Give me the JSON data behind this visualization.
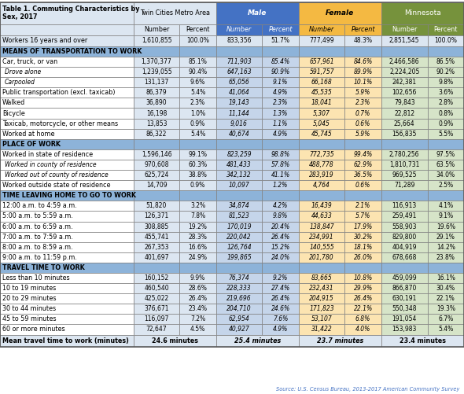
{
  "title": "Table 1. Commuting Characteristics by\nSex, 2017",
  "col_group_headers": [
    "Twin Cities Metro Area",
    "Male",
    "Female",
    "Minnesota"
  ],
  "col_sub_headers": [
    "Number",
    "Percent",
    "Number",
    "Percent",
    "Number",
    "Percent",
    "Number",
    "Percent"
  ],
  "tc_bg": "#dce6f1",
  "male_bg": "#4472c4",
  "female_bg": "#f4b942",
  "mn_bg": "#76923c",
  "section_bg": "#8db3d9",
  "worker_bg": "#dce6f1",
  "normal_bg": "#ffffff",
  "mean_bg": "#dce6f1",
  "male_data_bg": "#c5d5ea",
  "female_data_bg": "#fce4b1",
  "mn_data_bg": "#d6e4c8",
  "border_color": "#7f7f7f",
  "source_text": "Source: U.S. Census Bureau, 2013-2017 American Community Survey",
  "source_color": "#4472c4",
  "rows": [
    {
      "label": "Workers 16 years and over",
      "type": "workers",
      "v": [
        "1,610,855",
        "100.0%",
        "833,356",
        "51.7%",
        "777,499",
        "48.3%",
        "2,851,545",
        "100.0%"
      ]
    },
    {
      "label": "MEANS OF TRANSPORTATION TO WORK",
      "type": "section",
      "v": []
    },
    {
      "label": "Car, truck, or van",
      "type": "normal",
      "v": [
        "1,370,377",
        "85.1%",
        "711,903",
        "85.4%",
        "657,961",
        "84.6%",
        "2,466,586",
        "86.5%"
      ]
    },
    {
      "label": "Drove alone",
      "type": "subrow",
      "v": [
        "1,239,055",
        "90.4%",
        "647,163",
        "90.9%",
        "591,757",
        "89.9%",
        "2,224,205",
        "90.2%"
      ]
    },
    {
      "label": "Carpooled",
      "type": "subrow",
      "v": [
        "131,137",
        "9.6%",
        "65,056",
        "9.1%",
        "66,168",
        "10.1%",
        "242,381",
        "9.8%"
      ]
    },
    {
      "label": "Public transportation (excl. taxicab)",
      "type": "normal",
      "v": [
        "86,379",
        "5.4%",
        "41,064",
        "4.9%",
        "45,535",
        "5.9%",
        "102,656",
        "3.6%"
      ]
    },
    {
      "label": "Walked",
      "type": "normal",
      "v": [
        "36,890",
        "2.3%",
        "19,143",
        "2.3%",
        "18,041",
        "2.3%",
        "79,843",
        "2.8%"
      ]
    },
    {
      "label": "Bicycle",
      "type": "normal",
      "v": [
        "16,198",
        "1.0%",
        "11,144",
        "1.3%",
        "5,307",
        "0.7%",
        "22,812",
        "0.8%"
      ]
    },
    {
      "label": "Taxicab, motorcycle, or other means",
      "type": "normal",
      "v": [
        "13,853",
        "0.9%",
        "9,016",
        "1.1%",
        "5,045",
        "0.6%",
        "25,664",
        "0.9%"
      ]
    },
    {
      "label": "Worked at home",
      "type": "normal",
      "v": [
        "86,322",
        "5.4%",
        "40,674",
        "4.9%",
        "45,745",
        "5.9%",
        "156,835",
        "5.5%"
      ]
    },
    {
      "label": "PLACE OF WORK",
      "type": "section",
      "v": []
    },
    {
      "label": "Worked in state of residence",
      "type": "normal",
      "v": [
        "1,596,146",
        "99.1%",
        "823,259",
        "98.8%",
        "772,735",
        "99.4%",
        "2,780,256",
        "97.5%"
      ]
    },
    {
      "label": "Worked in county of residence",
      "type": "subrow",
      "v": [
        "970,608",
        "60.3%",
        "481,433",
        "57.8%",
        "488,778",
        "62.9%",
        "1,810,731",
        "63.5%"
      ]
    },
    {
      "label": "Worked out of county of residence",
      "type": "subrow",
      "v": [
        "625,724",
        "38.8%",
        "342,132",
        "41.1%",
        "283,919",
        "36.5%",
        "969,525",
        "34.0%"
      ]
    },
    {
      "label": "Worked outside state of residence",
      "type": "normal",
      "v": [
        "14,709",
        "0.9%",
        "10,097",
        "1.2%",
        "4,764",
        "0.6%",
        "71,289",
        "2.5%"
      ]
    },
    {
      "label": "TIME LEAVING HOME TO GO TO WORK",
      "type": "section",
      "v": []
    },
    {
      "label": "12:00 a.m. to 4:59 a.m.",
      "type": "normal",
      "v": [
        "51,820",
        "3.2%",
        "34,874",
        "4.2%",
        "16,439",
        "2.1%",
        "116,913",
        "4.1%"
      ]
    },
    {
      "label": "5:00 a.m. to 5:59 a.m.",
      "type": "normal",
      "v": [
        "126,371",
        "7.8%",
        "81,523",
        "9.8%",
        "44,633",
        "5.7%",
        "259,491",
        "9.1%"
      ]
    },
    {
      "label": "6:00 a.m. to 6:59 a.m.",
      "type": "normal",
      "v": [
        "308,885",
        "19.2%",
        "170,019",
        "20.4%",
        "138,847",
        "17.9%",
        "558,903",
        "19.6%"
      ]
    },
    {
      "label": "7:00 a.m. to 7:59 a.m.",
      "type": "normal",
      "v": [
        "455,741",
        "28.3%",
        "220,042",
        "26.4%",
        "234,991",
        "30.2%",
        "829,800",
        "29.1%"
      ]
    },
    {
      "label": "8:00 a.m. to 8:59 a.m.",
      "type": "normal",
      "v": [
        "267,353",
        "16.6%",
        "126,764",
        "15.2%",
        "140,555",
        "18.1%",
        "404,919",
        "14.2%"
      ]
    },
    {
      "label": "9:00 a.m. to 11:59 p.m.",
      "type": "normal",
      "v": [
        "401,697",
        "24.9%",
        "199,865",
        "24.0%",
        "201,780",
        "26.0%",
        "678,668",
        "23.8%"
      ]
    },
    {
      "label": "TRAVEL TIME TO WORK",
      "type": "section",
      "v": []
    },
    {
      "label": "Less than 10 minutes",
      "type": "normal",
      "v": [
        "160,152",
        "9.9%",
        "76,374",
        "9.2%",
        "83,665",
        "10.8%",
        "459,099",
        "16.1%"
      ]
    },
    {
      "label": "10 to 19 minutes",
      "type": "normal",
      "v": [
        "460,540",
        "28.6%",
        "228,333",
        "27.4%",
        "232,431",
        "29.9%",
        "866,870",
        "30.4%"
      ]
    },
    {
      "label": "20 to 29 minutes",
      "type": "normal",
      "v": [
        "425,022",
        "26.4%",
        "219,696",
        "26.4%",
        "204,915",
        "26.4%",
        "630,191",
        "22.1%"
      ]
    },
    {
      "label": "30 to 44 minutes",
      "type": "normal",
      "v": [
        "376,671",
        "23.4%",
        "204,710",
        "24.6%",
        "171,823",
        "22.1%",
        "550,348",
        "19.3%"
      ]
    },
    {
      "label": "45 to 59 minutes",
      "type": "normal",
      "v": [
        "116,097",
        "7.2%",
        "62,954",
        "7.6%",
        "53,107",
        "6.8%",
        "191,054",
        "6.7%"
      ]
    },
    {
      "label": "60 or more minutes",
      "type": "normal",
      "v": [
        "72,647",
        "4.5%",
        "40,927",
        "4.9%",
        "31,422",
        "4.0%",
        "153,983",
        "5.4%"
      ]
    },
    {
      "label": "Mean travel time to work (minutes)",
      "type": "mean",
      "v": [
        "24.6 minutes",
        "",
        "25.4 minutes",
        "",
        "23.7 minutes",
        "",
        "23.4 minutes",
        ""
      ]
    }
  ]
}
